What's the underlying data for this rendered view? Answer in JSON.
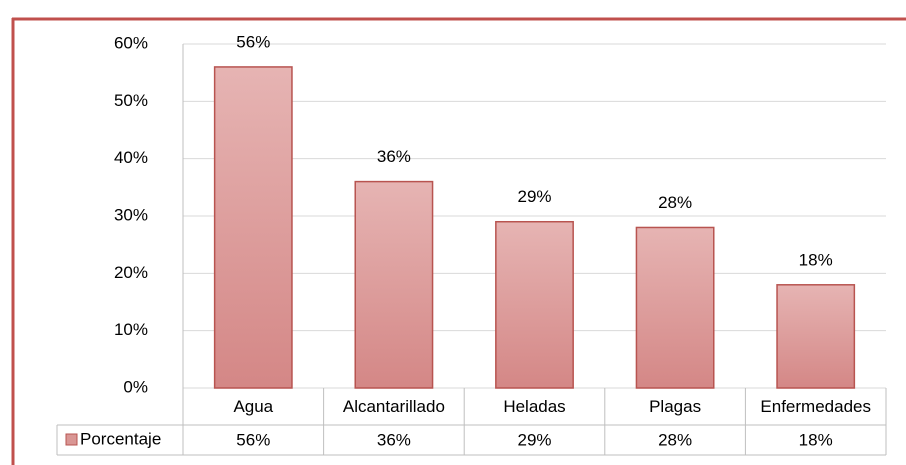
{
  "chart_data": {
    "type": "bar",
    "categories": [
      "Agua",
      "Alcantarillado",
      "Heladas",
      "Plagas",
      "Enfermedades"
    ],
    "series": [
      {
        "name": "Porcentaje",
        "color": "#d99694",
        "values": [
          56,
          36,
          29,
          28,
          18
        ],
        "value_labels": [
          "56%",
          "36%",
          "29%",
          "28%",
          "18%"
        ]
      }
    ],
    "ylim": [
      0,
      60
    ],
    "yticks": [
      {
        "value": 0,
        "label": "0%"
      },
      {
        "value": 10,
        "label": "10%"
      },
      {
        "value": 20,
        "label": "20%"
      },
      {
        "value": 30,
        "label": "30%"
      },
      {
        "value": 40,
        "label": "40%"
      },
      {
        "value": 50,
        "label": "50%"
      },
      {
        "value": 60,
        "label": "60%"
      }
    ],
    "grid": true
  }
}
